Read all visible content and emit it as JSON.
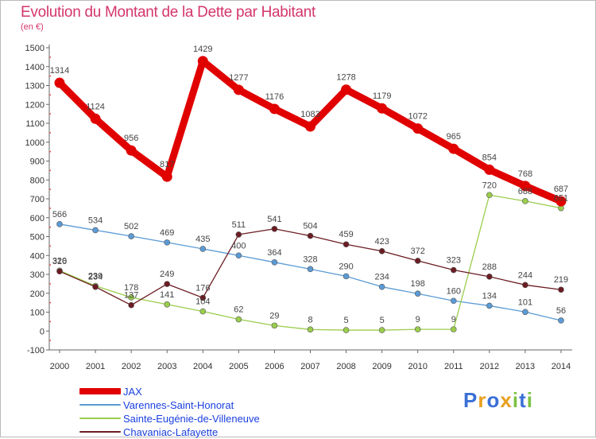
{
  "header": {
    "title": "Evolution du Montant de la Dette par Habitant",
    "unit": "(en €)"
  },
  "brand": {
    "letters": [
      "P",
      "r",
      "o",
      "x",
      "i",
      "t",
      "i"
    ],
    "colors": [
      "#3a6fd6",
      "#e8a020",
      "#3a6fd6",
      "#e8a020",
      "#7cc242",
      "#3a6fd6",
      "#7cc242"
    ]
  },
  "chart_data": {
    "type": "line",
    "title": "Evolution du Montant de la Dette par Habitant",
    "ylabel": "(en €)",
    "xlabel": "",
    "x": [
      "2000",
      "2001",
      "2002",
      "2003",
      "2004",
      "2005",
      "2006",
      "2007",
      "2008",
      "2009",
      "2010",
      "2011",
      "2012",
      "2013",
      "2014"
    ],
    "ylim": [
      -100,
      1500
    ],
    "yticks": [
      -100,
      0,
      100,
      200,
      300,
      400,
      500,
      600,
      700,
      800,
      900,
      1000,
      1100,
      1200,
      1300,
      1400,
      1500
    ],
    "grid": false,
    "legend_position": "bottom-left",
    "series": [
      {
        "name": "JAX",
        "color": "#e00000",
        "values": [
          1314,
          1124,
          956,
          817,
          1429,
          1277,
          1176,
          1083,
          1278,
          1179,
          1072,
          965,
          854,
          768,
          687
        ]
      },
      {
        "name": "Varennes-Saint-Honorat",
        "color": "#5b9bd5",
        "values": [
          566,
          534,
          502,
          469,
          435,
          400,
          364,
          328,
          290,
          234,
          198,
          160,
          134,
          101,
          56
        ]
      },
      {
        "name": "Sainte-Eugénie-de-Villeneuve",
        "color": "#9acd4c",
        "values": [
          320,
          239,
          178,
          141,
          104,
          62,
          29,
          8,
          5,
          5,
          9,
          9,
          720,
          688,
          651
        ]
      },
      {
        "name": "Chavaniac-Lafayette",
        "color": "#6b1c22",
        "values": [
          316,
          234,
          137,
          249,
          176,
          511,
          541,
          504,
          459,
          423,
          372,
          323,
          288,
          244,
          219
        ]
      }
    ]
  }
}
